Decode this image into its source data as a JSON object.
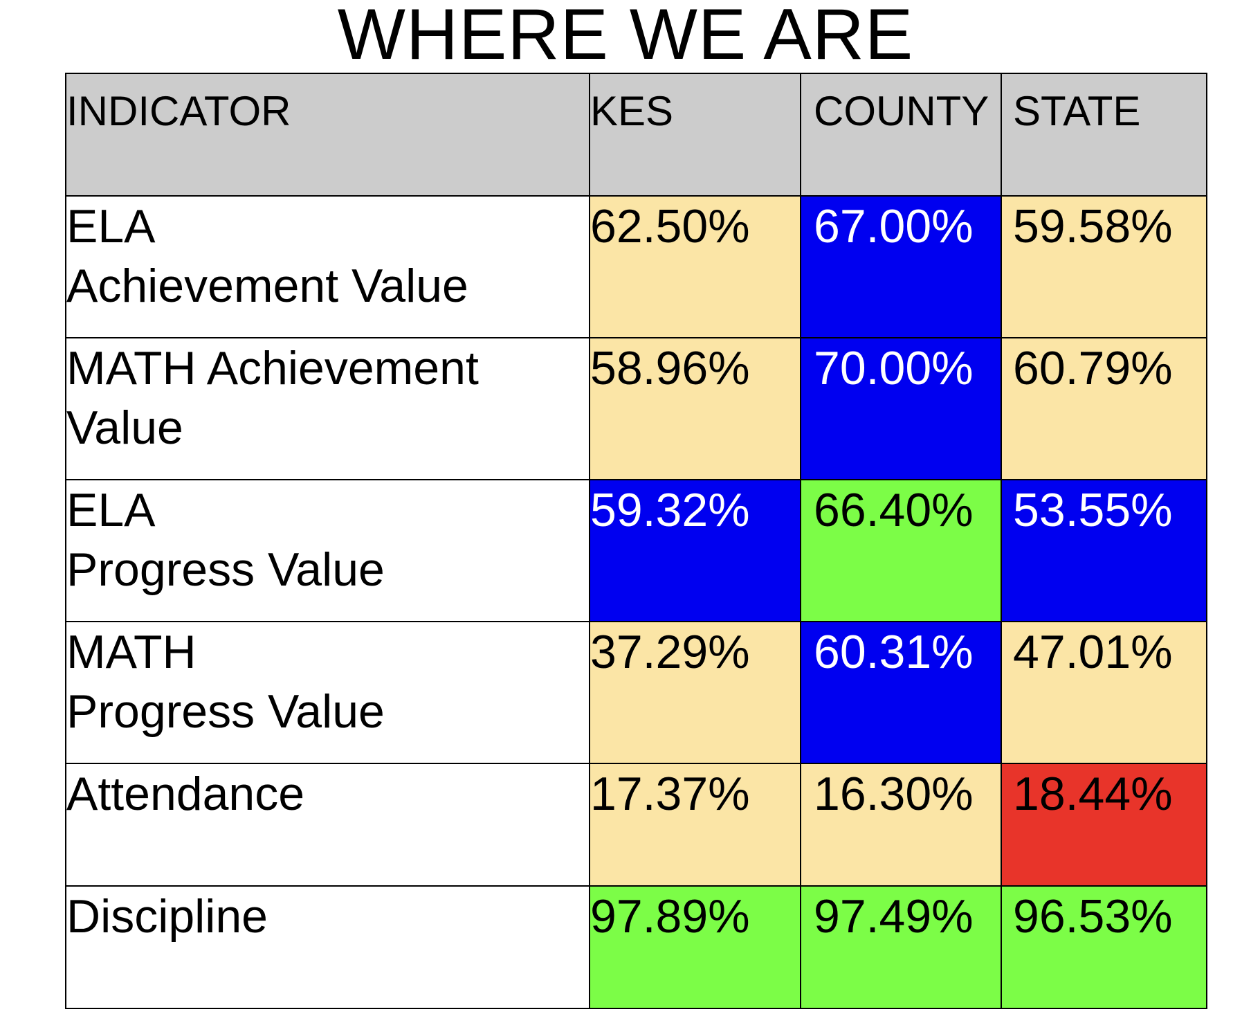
{
  "title": "WHERE WE ARE",
  "colors": {
    "header_bg": "#cccccc",
    "tan": "#fbe5a6",
    "blue": "#0000f0",
    "green": "#7cfd47",
    "red": "#e8342a",
    "text_dark": "#000000",
    "text_light": "#ffffff"
  },
  "table": {
    "headers": [
      "INDICATOR",
      "KES",
      "COUNTY",
      "STATE"
    ],
    "rows": [
      {
        "indicator_lines": [
          "ELA",
          "Achievement Value"
        ],
        "cells": [
          {
            "value": "62.50%",
            "fill": "tan"
          },
          {
            "value": "67.00%",
            "fill": "blue"
          },
          {
            "value": "59.58%",
            "fill": "tan"
          }
        ]
      },
      {
        "indicator_lines": [
          "MATH Achievement",
          "Value"
        ],
        "cells": [
          {
            "value": "58.96%",
            "fill": "tan"
          },
          {
            "value": "70.00%",
            "fill": "blue"
          },
          {
            "value": "60.79%",
            "fill": "tan"
          }
        ]
      },
      {
        "indicator_lines": [
          "ELA",
          "Progress Value"
        ],
        "cells": [
          {
            "value": "59.32%",
            "fill": "blue"
          },
          {
            "value": "66.40%",
            "fill": "green"
          },
          {
            "value": "53.55%",
            "fill": "blue"
          }
        ]
      },
      {
        "indicator_lines": [
          "MATH",
          "Progress Value"
        ],
        "cells": [
          {
            "value": "37.29%",
            "fill": "tan"
          },
          {
            "value": "60.31%",
            "fill": "blue"
          },
          {
            "value": "47.01%",
            "fill": "tan"
          }
        ]
      },
      {
        "indicator_lines": [
          "Attendance",
          ""
        ],
        "cells": [
          {
            "value": "17.37%",
            "fill": "tan"
          },
          {
            "value": "16.30%",
            "fill": "tan"
          },
          {
            "value": "18.44%",
            "fill": "red"
          }
        ]
      },
      {
        "indicator_lines": [
          "Discipline",
          ""
        ],
        "cells": [
          {
            "value": "97.89%",
            "fill": "green"
          },
          {
            "value": "97.49%",
            "fill": "green"
          },
          {
            "value": "96.53%",
            "fill": "green"
          }
        ]
      }
    ]
  }
}
